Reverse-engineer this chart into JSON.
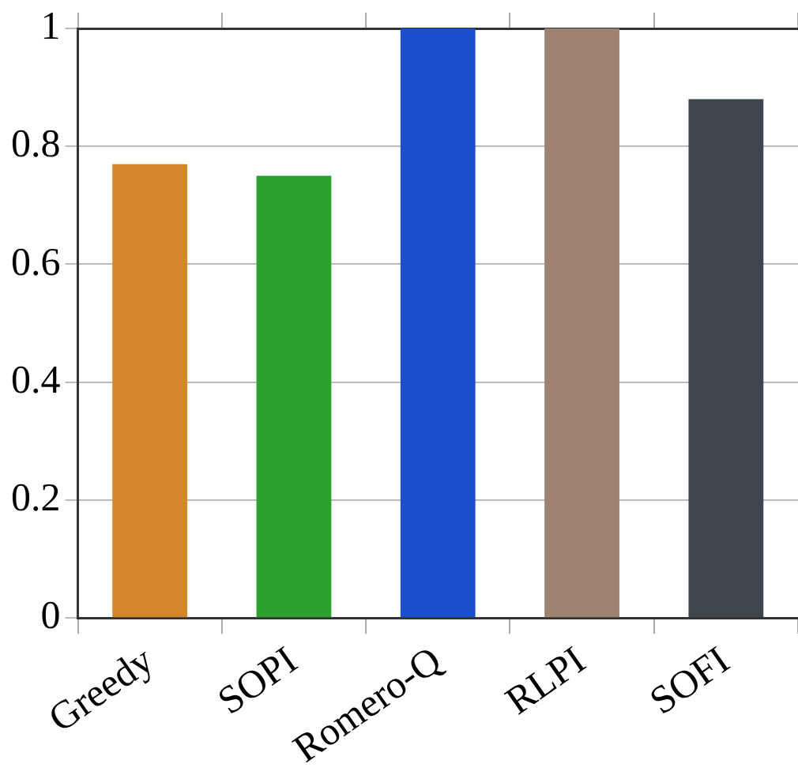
{
  "chart_data": {
    "type": "bar",
    "categories": [
      "Greedy",
      "SOPI",
      "Romero-Q",
      "RLPI",
      "SOFI"
    ],
    "values": [
      0.77,
      0.75,
      1,
      1,
      0.88
    ],
    "colors": [
      "#d5862b",
      "#2ca02c",
      "#1c4fcc",
      "#9e8270",
      "#3e454c"
    ],
    "ylim": [
      0,
      1
    ],
    "yticks": [
      0,
      0.2,
      0.4,
      0.6,
      0.8,
      1
    ],
    "grid": "y",
    "legend": false
  }
}
